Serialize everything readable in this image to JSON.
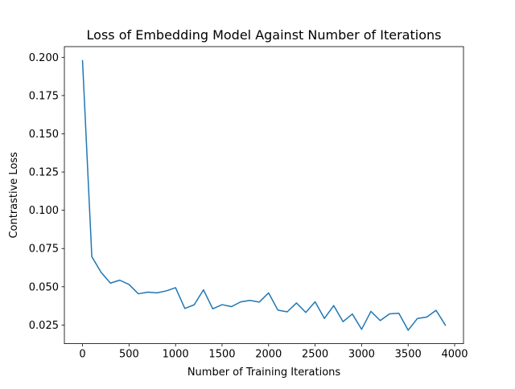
{
  "chart_data": {
    "type": "line",
    "title": "Loss of Embedding Model Against Number of Iterations",
    "xlabel": "Number of Training Iterations",
    "ylabel": "Contrastive Loss",
    "xlim": [
      -195,
      4095
    ],
    "ylim": [
      0.0128,
      0.207
    ],
    "xticks": [
      0,
      500,
      1000,
      1500,
      2000,
      2500,
      3000,
      3500,
      4000
    ],
    "xtick_labels": [
      "0",
      "500",
      "1000",
      "1500",
      "2000",
      "2500",
      "3000",
      "3500",
      "4000"
    ],
    "yticks": [
      0.025,
      0.05,
      0.075,
      0.1,
      0.125,
      0.15,
      0.175,
      0.2
    ],
    "ytick_labels": [
      "0.025",
      "0.050",
      "0.075",
      "0.100",
      "0.125",
      "0.150",
      "0.175",
      "0.200"
    ],
    "grid": false,
    "legend": "none",
    "series": [
      {
        "color": "#1f77b4",
        "x": [
          0,
          100,
          200,
          300,
          400,
          500,
          600,
          700,
          800,
          900,
          1000,
          1100,
          1200,
          1300,
          1400,
          1500,
          1600,
          1700,
          1800,
          1900,
          2000,
          2100,
          2200,
          2300,
          2400,
          2500,
          2600,
          2700,
          2800,
          2900,
          3000,
          3100,
          3200,
          3300,
          3400,
          3500,
          3600,
          3700,
          3800,
          3900
        ],
        "y": [
          0.1978,
          0.0697,
          0.0594,
          0.0524,
          0.0543,
          0.0515,
          0.0454,
          0.0465,
          0.046,
          0.0473,
          0.0494,
          0.0358,
          0.0382,
          0.048,
          0.0356,
          0.0383,
          0.037,
          0.0401,
          0.0411,
          0.04,
          0.046,
          0.0347,
          0.0336,
          0.0394,
          0.0332,
          0.0402,
          0.0293,
          0.0377,
          0.0272,
          0.0322,
          0.0222,
          0.0339,
          0.0279,
          0.0323,
          0.0327,
          0.0216,
          0.0293,
          0.0302,
          0.0346,
          0.0249
        ]
      }
    ]
  }
}
